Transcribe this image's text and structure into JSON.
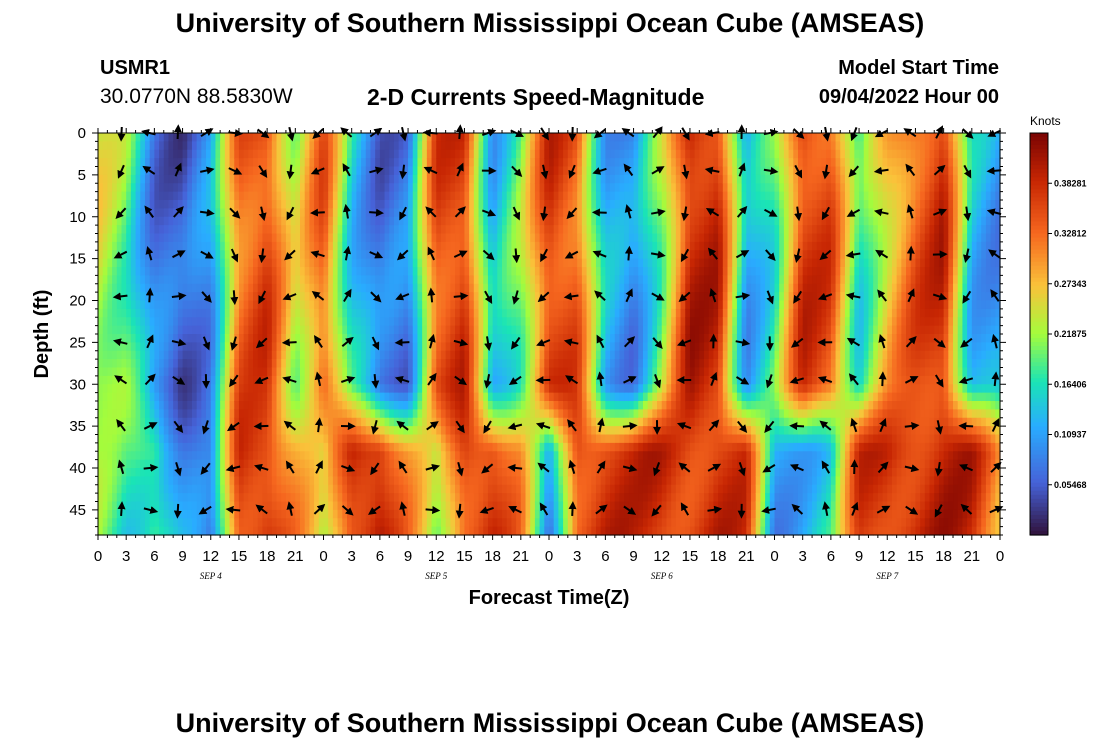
{
  "header": {
    "title": "University of Southern Mississippi Ocean Cube (AMSEAS)",
    "station_id": "USMR1",
    "station_coords": "30.0770N  88.5830W",
    "subtitle": "2-D Currents Speed-Magnitude",
    "model_start_label": "Model Start Time",
    "model_start_value": "09/04/2022 Hour 00"
  },
  "footer": {
    "title": "University of Southern Mississippi Ocean Cube (AMSEAS)"
  },
  "chart_data": {
    "type": "heatmap",
    "title": "2-D Currents Speed-Magnitude",
    "xlabel": "Forecast Time(Z)",
    "ylabel": "Depth (ft)",
    "x_ticks": [
      "0",
      "3",
      "6",
      "9",
      "12",
      "15",
      "18",
      "21",
      "0",
      "3",
      "6",
      "9",
      "12",
      "15",
      "18",
      "21",
      "0",
      "3",
      "6",
      "9",
      "12",
      "15",
      "18",
      "21",
      "0",
      "3",
      "6",
      "9",
      "12",
      "15",
      "18",
      "21",
      "0"
    ],
    "x_tick_hours": [
      0,
      3,
      6,
      9,
      12,
      15,
      18,
      21,
      24,
      27,
      30,
      33,
      36,
      39,
      42,
      45,
      48,
      51,
      54,
      57,
      60,
      63,
      66,
      69,
      72,
      75,
      78,
      81,
      84,
      87,
      90,
      93,
      96
    ],
    "date_labels": [
      {
        "label": "SEP 4",
        "hour": 12
      },
      {
        "label": "SEP 5",
        "hour": 36
      },
      {
        "label": "SEP 6",
        "hour": 60
      },
      {
        "label": "SEP 7",
        "hour": 84
      }
    ],
    "xlim": [
      0,
      96
    ],
    "y_ticks": [
      0,
      5,
      10,
      15,
      20,
      25,
      30,
      35,
      40,
      45
    ],
    "ylim": [
      0,
      48
    ],
    "colorbar": {
      "title": "Knots",
      "ticks": [
        "0.38281",
        "0.32812",
        "0.27343",
        "0.21875",
        "0.16406",
        "0.10937",
        "0.05468"
      ],
      "tick_values": [
        0.38281,
        0.32812,
        0.27343,
        0.21875,
        0.16406,
        0.10937,
        0.05468
      ],
      "range": [
        0,
        0.4375
      ]
    },
    "vector_times": [
      2.5,
      5.5,
      8.5,
      11.5,
      14.5,
      17.5,
      20.5,
      23.5,
      26.5,
      29.5,
      32.5,
      35.5,
      38.5,
      41.5,
      44.5,
      47.5,
      50.5,
      53.5,
      56.5,
      59.5,
      62.5,
      65.5,
      68.5,
      71.5,
      74.5,
      77.5,
      80.5,
      83.5,
      86.5,
      89.5,
      92.5,
      95.5
    ],
    "vector_depths": [
      0,
      4.5,
      9.5,
      14.5,
      19.5,
      25,
      29.5,
      35,
      40,
      45
    ],
    "surface_speed_by_hour": [
      0.24,
      0.2,
      0.08,
      0.05,
      0.1,
      0.33,
      0.36,
      0.22,
      0.34,
      0.15,
      0.07,
      0.08,
      0.35,
      0.37,
      0.12,
      0.2,
      0.37,
      0.34,
      0.12,
      0.09,
      0.21,
      0.39,
      0.38,
      0.11,
      0.18,
      0.37,
      0.35,
      0.16,
      0.27,
      0.34,
      0.38,
      0.13,
      0.1
    ],
    "bottom_layer_speed_by_hour": [
      0.2,
      0.16,
      0.2,
      0.1,
      0.06,
      0.37,
      0.38,
      0.3,
      0.22,
      0.38,
      0.4,
      0.3,
      0.2,
      0.36,
      0.38,
      0.3,
      0.08,
      0.36,
      0.38,
      0.37,
      0.38,
      0.37,
      0.38,
      0.36,
      0.1,
      0.13,
      0.15,
      0.36,
      0.38,
      0.38,
      0.39,
      0.38,
      0.3
    ]
  }
}
